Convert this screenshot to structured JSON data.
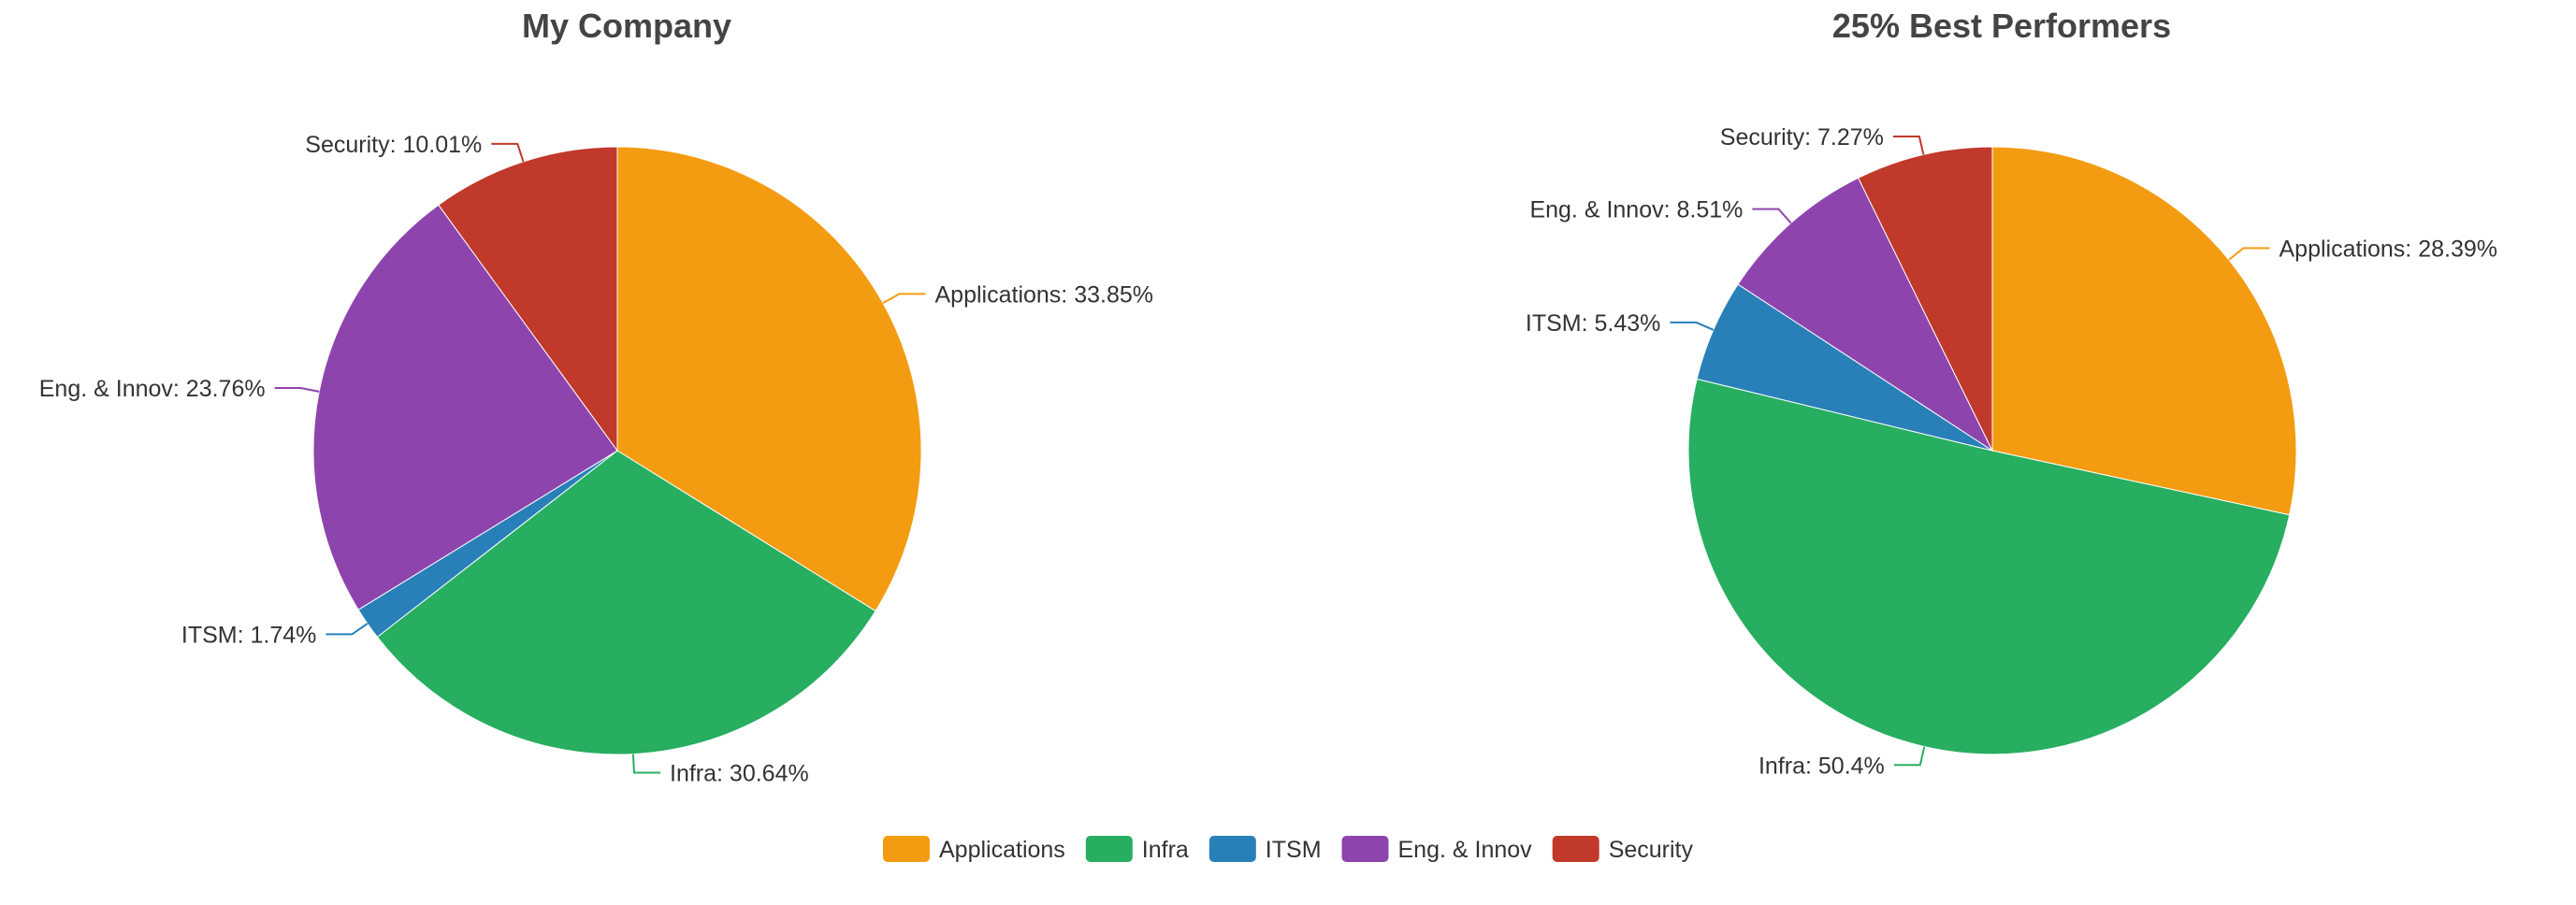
{
  "chart_data": [
    {
      "type": "pie",
      "title": "My Company",
      "categories": [
        "Applications",
        "Infra",
        "ITSM",
        "Eng. & Innov",
        "Security"
      ],
      "values": [
        33.85,
        30.64,
        1.74,
        23.76,
        10.01
      ],
      "labels": [
        "Applications: 33.85%",
        "Infra: 30.64%",
        "ITSM: 1.74%",
        "Eng. & Innov: 23.76%",
        "Security: 10.01%"
      ]
    },
    {
      "type": "pie",
      "title": "25% Best Performers",
      "categories": [
        "Applications",
        "Infra",
        "ITSM",
        "Eng. & Innov",
        "Security"
      ],
      "values": [
        28.39,
        50.4,
        5.43,
        8.51,
        7.27
      ],
      "labels": [
        "Applications: 28.39%",
        "Infra: 50.4%",
        "ITSM: 5.43%",
        "Eng. & Innov: 8.51%",
        "Security: 7.27%"
      ]
    }
  ],
  "legend": [
    "Applications",
    "Infra",
    "ITSM",
    "Eng. & Innov",
    "Security"
  ],
  "colors": [
    "#f39c12",
    "#27ae60",
    "#2980b9",
    "#8e44ad",
    "#c0392b"
  ]
}
